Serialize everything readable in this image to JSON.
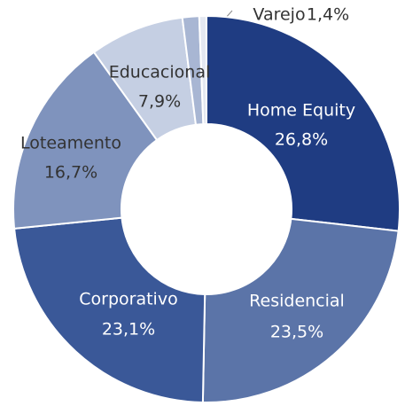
{
  "chart_data": {
    "type": "donut",
    "categories": [
      "Home Equity",
      "Residencial",
      "Corporativo",
      "Loteamento",
      "Educacional",
      "Varejo",
      null
    ],
    "values": [
      26.8,
      23.5,
      23.1,
      16.7,
      7.9,
      1.4,
      0.6
    ],
    "value_labels": [
      "26,8%",
      "23,5%",
      "23,1%",
      "16,7%",
      "7,9%",
      "1,4%",
      null
    ],
    "colors": [
      "#1f3c82",
      "#5b74a8",
      "#3a5898",
      "#7f93bd",
      "#c5cfe3",
      "#a8b6d3",
      "#e4e8f1"
    ]
  }
}
